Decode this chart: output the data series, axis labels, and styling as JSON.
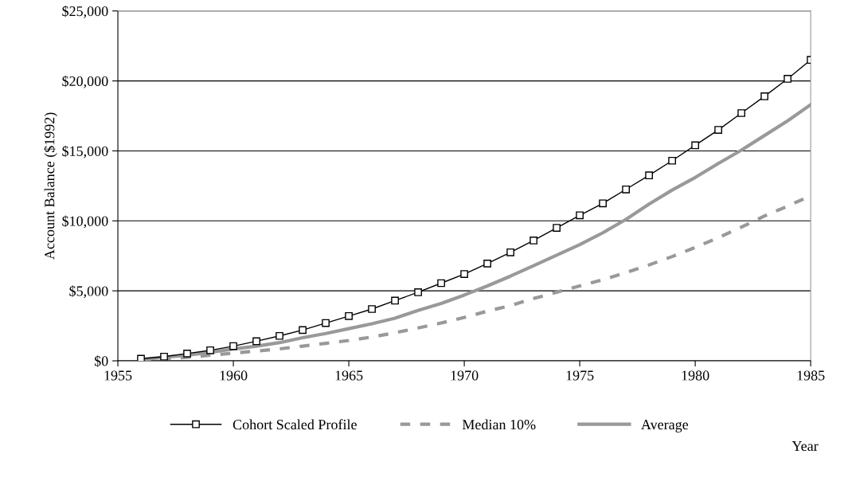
{
  "chart_data": {
    "type": "line",
    "xlabel": "Year",
    "ylabel": "Account Balance ($1992)",
    "x": [
      1956,
      1957,
      1958,
      1959,
      1960,
      1961,
      1962,
      1963,
      1964,
      1965,
      1966,
      1967,
      1968,
      1969,
      1970,
      1971,
      1972,
      1973,
      1974,
      1975,
      1976,
      1977,
      1978,
      1979,
      1980,
      1981,
      1982,
      1983,
      1984,
      1985
    ],
    "series": [
      {
        "name": "Cohort Scaled Profile",
        "color": "#000000",
        "marker": "square",
        "line_style": "solid",
        "values": [
          150,
          300,
          520,
          750,
          1050,
          1400,
          1780,
          2200,
          2700,
          3200,
          3700,
          4300,
          4900,
          5550,
          6200,
          6950,
          7750,
          8600,
          9500,
          10400,
          11250,
          12250,
          13250,
          14300,
          15400,
          16500,
          17700,
          18900,
          20150,
          21500
        ]
      },
      {
        "name": "Median 10%",
        "color": "#999999",
        "marker": "none",
        "line_style": "dashed",
        "values": [
          50,
          150,
          250,
          400,
          550,
          700,
          850,
          1050,
          1250,
          1450,
          1700,
          2000,
          2350,
          2700,
          3100,
          3550,
          3950,
          4450,
          4900,
          5350,
          5800,
          6300,
          6850,
          7450,
          8100,
          8800,
          9550,
          10350,
          11050,
          11800
        ]
      },
      {
        "name": "Average",
        "color": "#999999",
        "marker": "none",
        "line_style": "solid",
        "values": [
          100,
          250,
          400,
          600,
          850,
          1050,
          1300,
          1650,
          1950,
          2300,
          2650,
          3050,
          3600,
          4100,
          4700,
          5350,
          6050,
          6800,
          7550,
          8300,
          9150,
          10100,
          11200,
          12200,
          13100,
          14100,
          15050,
          16100,
          17150,
          18300
        ]
      }
    ],
    "xlim": [
      1955,
      1985
    ],
    "xticks": [
      1955,
      1960,
      1965,
      1970,
      1975,
      1980,
      1985
    ],
    "ylim": [
      0,
      25000
    ],
    "yticks": [
      {
        "value": 0,
        "label": "$0"
      },
      {
        "value": 5000,
        "label": "$5,000"
      },
      {
        "value": 10000,
        "label": "$10,000"
      },
      {
        "value": 15000,
        "label": "$15,000"
      },
      {
        "value": 20000,
        "label": "$20,000"
      },
      {
        "value": 25000,
        "label": "$25,000"
      }
    ],
    "grid": "y",
    "legend": "bottom"
  }
}
